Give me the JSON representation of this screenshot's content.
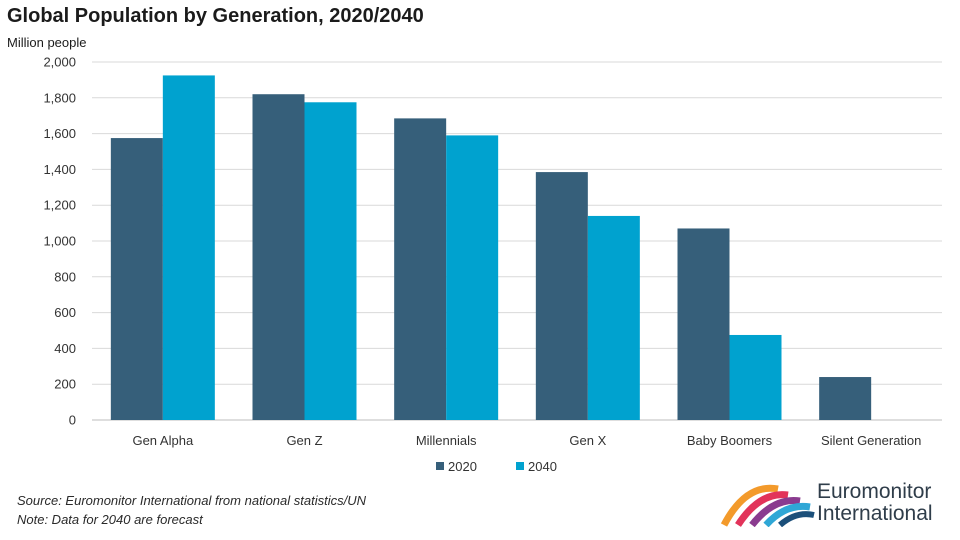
{
  "title": "Global Population by Generation, 2020/2040",
  "chart_data": {
    "type": "bar",
    "title": "Global Population by Generation, 2020/2040",
    "ylabel": "Million people",
    "xlabel": "",
    "categories": [
      "Gen Alpha",
      "Gen Z",
      "Millennials",
      "Gen X",
      "Baby Boomers",
      "Silent Generation"
    ],
    "series": [
      {
        "name": "2020",
        "color": "#365f7a",
        "values": [
          1575,
          1820,
          1685,
          1385,
          1070,
          240
        ]
      },
      {
        "name": "2040",
        "color": "#00a2cf",
        "values": [
          1925,
          1775,
          1590,
          1140,
          475,
          0
        ]
      }
    ],
    "ylim": [
      0,
      2000
    ],
    "yticks": [
      0,
      200,
      400,
      600,
      800,
      1000,
      1200,
      1400,
      1600,
      1800,
      2000
    ],
    "ytick_labels": [
      "0",
      "200",
      "400",
      "600",
      "800",
      "1,000",
      "1,200",
      "1,400",
      "1,600",
      "1,800",
      "2,000"
    ],
    "grid": true,
    "legend": "bottom-center"
  },
  "footer": {
    "source": "Source: Euromonitor International from national statistics/UN",
    "note": "Note: Data for 2040 are forecast"
  },
  "logo": {
    "line1": "Euromonitor",
    "line2": "International"
  }
}
